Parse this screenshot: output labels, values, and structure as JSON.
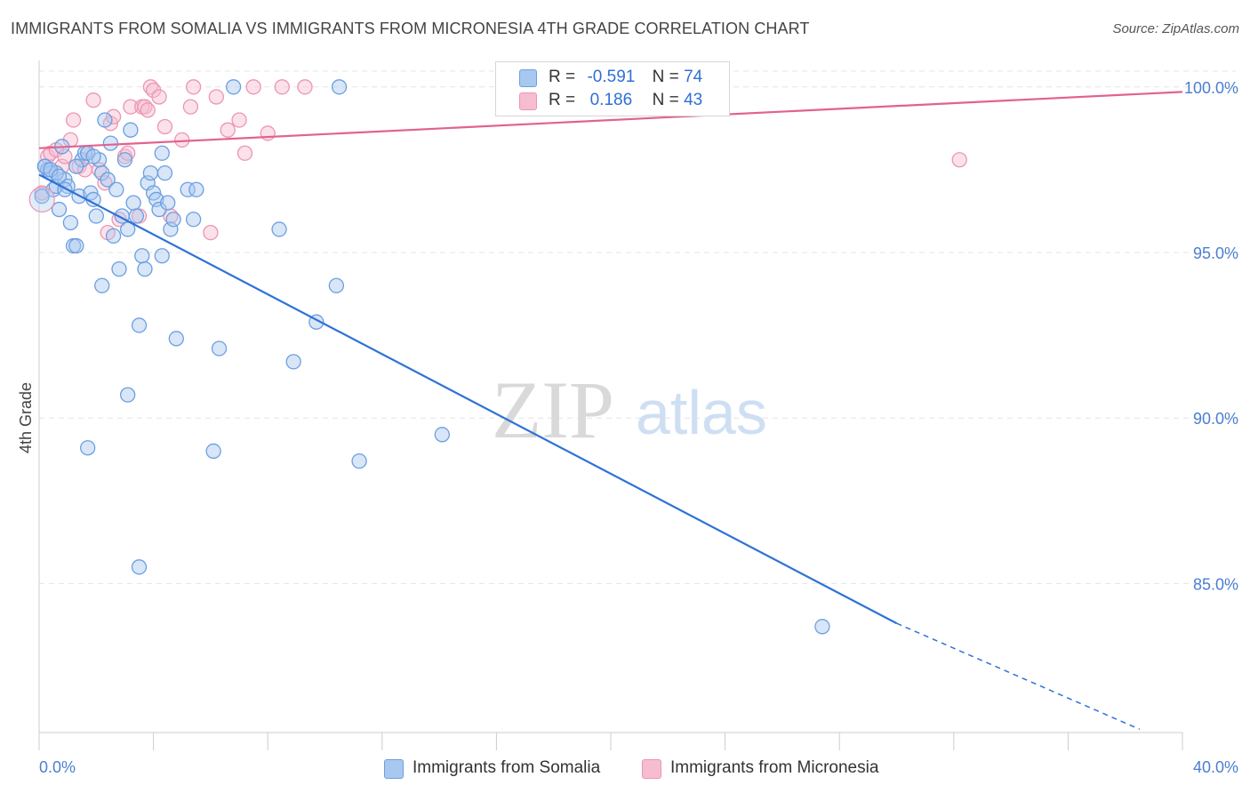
{
  "header": {
    "title": "IMMIGRANTS FROM SOMALIA VS IMMIGRANTS FROM MICRONESIA 4TH GRADE CORRELATION CHART",
    "source": "Source: ZipAtlas.com"
  },
  "watermark": {
    "zip": "ZIP",
    "atlas": "atlas"
  },
  "legend_top": {
    "rows": [
      {
        "r_label": "R =",
        "r_value": "-0.591",
        "n_label": "N =",
        "n_value": "74"
      },
      {
        "r_label": "R =",
        "r_value": "0.186",
        "n_label": "N =",
        "n_value": "43"
      }
    ]
  },
  "legend_bottom": {
    "items": [
      "Immigrants from Somalia",
      "Immigrants from Micronesia"
    ]
  },
  "colors": {
    "somalia_fill": "#a9c8ef",
    "somalia_stroke": "#6b9fe0",
    "somalia_line": "#2f72d6",
    "micronesia_fill": "#f6bdd0",
    "micronesia_stroke": "#ec95b4",
    "micronesia_line": "#e2628f",
    "tick_text": "#4a7fd0",
    "grid": "#e4e4e4"
  },
  "chart_data": {
    "type": "scatter",
    "title": "IMMIGRANTS FROM SOMALIA VS IMMIGRANTS FROM MICRONESIA 4TH GRADE CORRELATION CHART",
    "xlabel": "",
    "ylabel": "4th Grade",
    "xlim": [
      0,
      40
    ],
    "ylim": [
      80.5,
      100.8
    ],
    "x_ticks": [
      "0.0%",
      "40.0%"
    ],
    "y_ticks": [
      {
        "value": 100,
        "label": "100.0%"
      },
      {
        "value": 95,
        "label": "95.0%"
      },
      {
        "value": 90,
        "label": "90.0%"
      },
      {
        "value": 85,
        "label": "85.0%"
      }
    ],
    "grid": true,
    "legend": "top-center",
    "series": [
      {
        "name": "Immigrants from Somalia",
        "r": -0.591,
        "n": 74,
        "trend": {
          "x0": 0,
          "y0": 97.35,
          "x1": 30,
          "y1": 83.8,
          "dashed_to_x": 38.5,
          "dashed_to_y": 80.6
        },
        "points": [
          [
            0.1,
            96.7
          ],
          [
            0.2,
            97.6
          ],
          [
            0.3,
            97.5
          ],
          [
            0.4,
            97.4
          ],
          [
            0.5,
            96.9
          ],
          [
            0.6,
            97.0
          ],
          [
            0.7,
            96.3
          ],
          [
            0.8,
            98.2
          ],
          [
            0.9,
            97.2
          ],
          [
            1.0,
            97.0
          ],
          [
            1.1,
            95.9
          ],
          [
            1.2,
            95.2
          ],
          [
            1.3,
            95.2
          ],
          [
            1.4,
            96.7
          ],
          [
            1.5,
            97.8
          ],
          [
            1.6,
            98.0
          ],
          [
            1.7,
            98.0
          ],
          [
            1.8,
            96.8
          ],
          [
            1.9,
            96.6
          ],
          [
            2.0,
            96.1
          ],
          [
            2.1,
            97.8
          ],
          [
            2.2,
            97.4
          ],
          [
            2.3,
            99.0
          ],
          [
            2.4,
            97.2
          ],
          [
            2.5,
            98.3
          ],
          [
            2.6,
            95.5
          ],
          [
            2.7,
            96.9
          ],
          [
            2.8,
            94.5
          ],
          [
            2.9,
            96.1
          ],
          [
            3.0,
            97.8
          ],
          [
            3.1,
            95.7
          ],
          [
            3.2,
            98.7
          ],
          [
            3.3,
            96.5
          ],
          [
            3.4,
            96.1
          ],
          [
            3.5,
            92.8
          ],
          [
            3.6,
            94.9
          ],
          [
            3.7,
            94.5
          ],
          [
            3.8,
            97.1
          ],
          [
            3.9,
            97.4
          ],
          [
            4.0,
            96.8
          ],
          [
            4.1,
            96.6
          ],
          [
            4.2,
            96.3
          ],
          [
            4.3,
            94.9
          ],
          [
            4.4,
            97.4
          ],
          [
            4.5,
            96.5
          ],
          [
            4.6,
            95.7
          ],
          [
            4.7,
            96.0
          ],
          [
            4.3,
            98.0
          ],
          [
            1.9,
            97.9
          ],
          [
            0.6,
            97.4
          ],
          [
            0.9,
            96.9
          ],
          [
            1.3,
            97.6
          ],
          [
            4.8,
            92.4
          ],
          [
            2.2,
            94.0
          ],
          [
            3.1,
            90.7
          ],
          [
            1.7,
            89.1
          ],
          [
            3.5,
            85.5
          ],
          [
            5.4,
            96.0
          ],
          [
            5.2,
            96.9
          ],
          [
            5.5,
            96.9
          ],
          [
            6.3,
            92.1
          ],
          [
            6.1,
            89.0
          ],
          [
            6.8,
            100.0
          ],
          [
            8.4,
            95.7
          ],
          [
            8.9,
            91.7
          ],
          [
            9.7,
            92.9
          ],
          [
            10.5,
            100.0
          ],
          [
            10.4,
            94.0
          ],
          [
            11.2,
            88.7
          ],
          [
            14.1,
            89.5
          ],
          [
            27.4,
            83.7
          ],
          [
            0.2,
            97.6
          ],
          [
            0.4,
            97.5
          ],
          [
            0.7,
            97.3
          ]
        ]
      },
      {
        "name": "Immigrants from Micronesia",
        "r": 0.186,
        "n": 43,
        "trend": {
          "x0": 0,
          "y0": 98.15,
          "x1": 40,
          "y1": 99.85
        },
        "points": [
          [
            0.1,
            96.8
          ],
          [
            0.3,
            97.9
          ],
          [
            0.4,
            98.0
          ],
          [
            0.6,
            98.1
          ],
          [
            0.8,
            97.6
          ],
          [
            0.9,
            97.9
          ],
          [
            1.1,
            98.4
          ],
          [
            1.2,
            99.0
          ],
          [
            1.4,
            97.6
          ],
          [
            1.6,
            97.5
          ],
          [
            1.7,
            98.0
          ],
          [
            1.9,
            99.6
          ],
          [
            2.1,
            97.5
          ],
          [
            2.3,
            97.1
          ],
          [
            2.4,
            95.6
          ],
          [
            2.5,
            98.9
          ],
          [
            2.6,
            99.1
          ],
          [
            2.8,
            96.0
          ],
          [
            3.0,
            97.9
          ],
          [
            3.1,
            98.0
          ],
          [
            3.2,
            99.4
          ],
          [
            3.5,
            96.1
          ],
          [
            3.6,
            99.4
          ],
          [
            3.7,
            99.4
          ],
          [
            3.8,
            99.3
          ],
          [
            3.9,
            100.0
          ],
          [
            4.0,
            99.9
          ],
          [
            4.2,
            99.7
          ],
          [
            4.4,
            98.8
          ],
          [
            4.6,
            96.1
          ],
          [
            5.0,
            98.4
          ],
          [
            5.3,
            99.4
          ],
          [
            5.4,
            100.0
          ],
          [
            6.0,
            95.6
          ],
          [
            6.2,
            99.7
          ],
          [
            6.6,
            98.7
          ],
          [
            7.0,
            99.0
          ],
          [
            7.2,
            98.0
          ],
          [
            7.5,
            100.0
          ],
          [
            8.0,
            98.6
          ],
          [
            8.5,
            100.0
          ],
          [
            9.3,
            100.0
          ],
          [
            32.2,
            97.8
          ]
        ]
      }
    ]
  }
}
